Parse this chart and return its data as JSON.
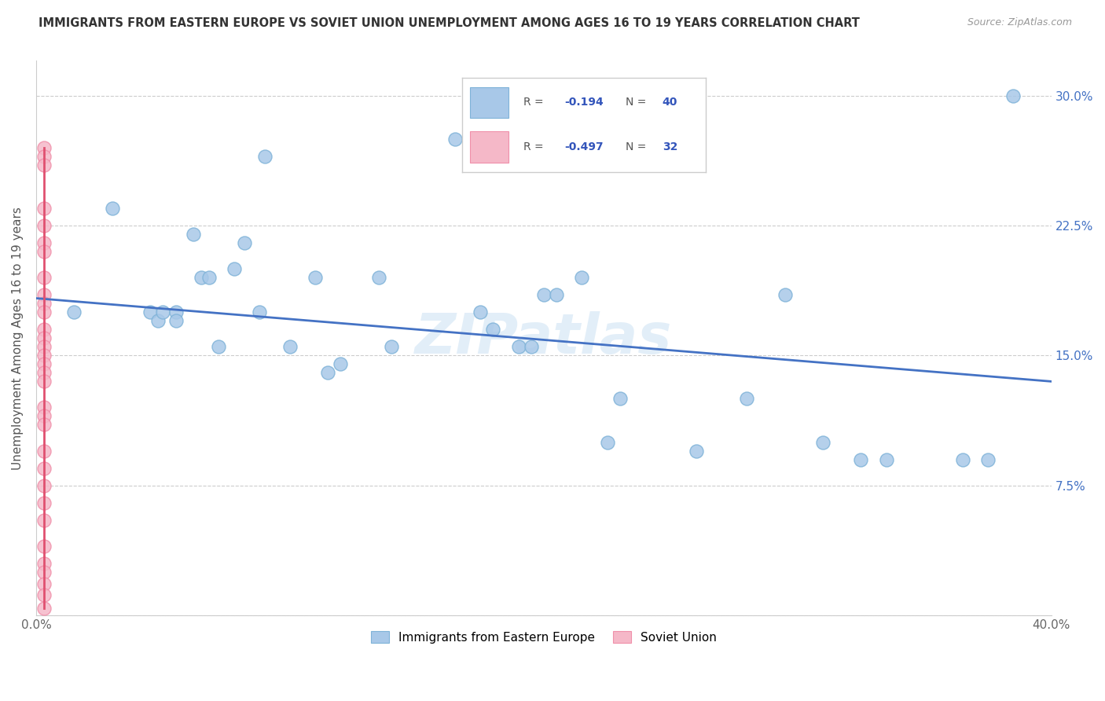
{
  "title": "IMMIGRANTS FROM EASTERN EUROPE VS SOVIET UNION UNEMPLOYMENT AMONG AGES 16 TO 19 YEARS CORRELATION CHART",
  "source": "Source: ZipAtlas.com",
  "ylabel": "Unemployment Among Ages 16 to 19 years",
  "xlim": [
    0.0,
    0.4
  ],
  "ylim": [
    0.0,
    0.32
  ],
  "xticks": [
    0.0,
    0.08,
    0.16,
    0.24,
    0.32,
    0.4
  ],
  "xticklabels": [
    "0.0%",
    "",
    "",
    "",
    "",
    "40.0%"
  ],
  "yticks": [
    0.0,
    0.075,
    0.15,
    0.225,
    0.3
  ],
  "yticklabels_right": [
    "",
    "7.5%",
    "15.0%",
    "22.5%",
    "30.0%"
  ],
  "blue_color": "#a8c8e8",
  "blue_edge_color": "#7fb3d8",
  "pink_color": "#f5b8c8",
  "pink_edge_color": "#f090aa",
  "blue_line_color": "#4472c4",
  "pink_line_color": "#e05070",
  "legend_text_color": "#3355bb",
  "R_blue": -0.194,
  "N_blue": 40,
  "R_pink": -0.497,
  "N_pink": 32,
  "watermark": "ZIPatlas",
  "blue_points_x": [
    0.015,
    0.03,
    0.045,
    0.048,
    0.05,
    0.055,
    0.055,
    0.062,
    0.065,
    0.068,
    0.072,
    0.078,
    0.082,
    0.088,
    0.09,
    0.1,
    0.11,
    0.115,
    0.12,
    0.135,
    0.14,
    0.165,
    0.175,
    0.18,
    0.19,
    0.195,
    0.2,
    0.205,
    0.215,
    0.225,
    0.23,
    0.26,
    0.28,
    0.295,
    0.31,
    0.325,
    0.335,
    0.365,
    0.375,
    0.385
  ],
  "blue_points_y": [
    0.175,
    0.235,
    0.175,
    0.17,
    0.175,
    0.175,
    0.17,
    0.22,
    0.195,
    0.195,
    0.155,
    0.2,
    0.215,
    0.175,
    0.265,
    0.155,
    0.195,
    0.14,
    0.145,
    0.195,
    0.155,
    0.275,
    0.175,
    0.165,
    0.155,
    0.155,
    0.185,
    0.185,
    0.195,
    0.1,
    0.125,
    0.095,
    0.125,
    0.185,
    0.1,
    0.09,
    0.09,
    0.09,
    0.09,
    0.3
  ],
  "pink_points_x": [
    0.003,
    0.003,
    0.003,
    0.003,
    0.003,
    0.003,
    0.003,
    0.003,
    0.003,
    0.003,
    0.003,
    0.003,
    0.003,
    0.003,
    0.003,
    0.003,
    0.003,
    0.003,
    0.003,
    0.003,
    0.003,
    0.003,
    0.003,
    0.003,
    0.003,
    0.003,
    0.003,
    0.003,
    0.003,
    0.003,
    0.003,
    0.003
  ],
  "pink_points_y": [
    0.27,
    0.265,
    0.26,
    0.235,
    0.225,
    0.215,
    0.21,
    0.195,
    0.185,
    0.18,
    0.175,
    0.165,
    0.16,
    0.155,
    0.15,
    0.145,
    0.14,
    0.135,
    0.12,
    0.115,
    0.11,
    0.095,
    0.085,
    0.075,
    0.065,
    0.055,
    0.04,
    0.03,
    0.025,
    0.018,
    0.012,
    0.004
  ],
  "blue_trend_x": [
    0.0,
    0.4
  ],
  "blue_trend_y": [
    0.183,
    0.135
  ],
  "pink_trend_x": [
    0.003,
    0.003
  ],
  "pink_trend_y": [
    0.27,
    0.004
  ]
}
